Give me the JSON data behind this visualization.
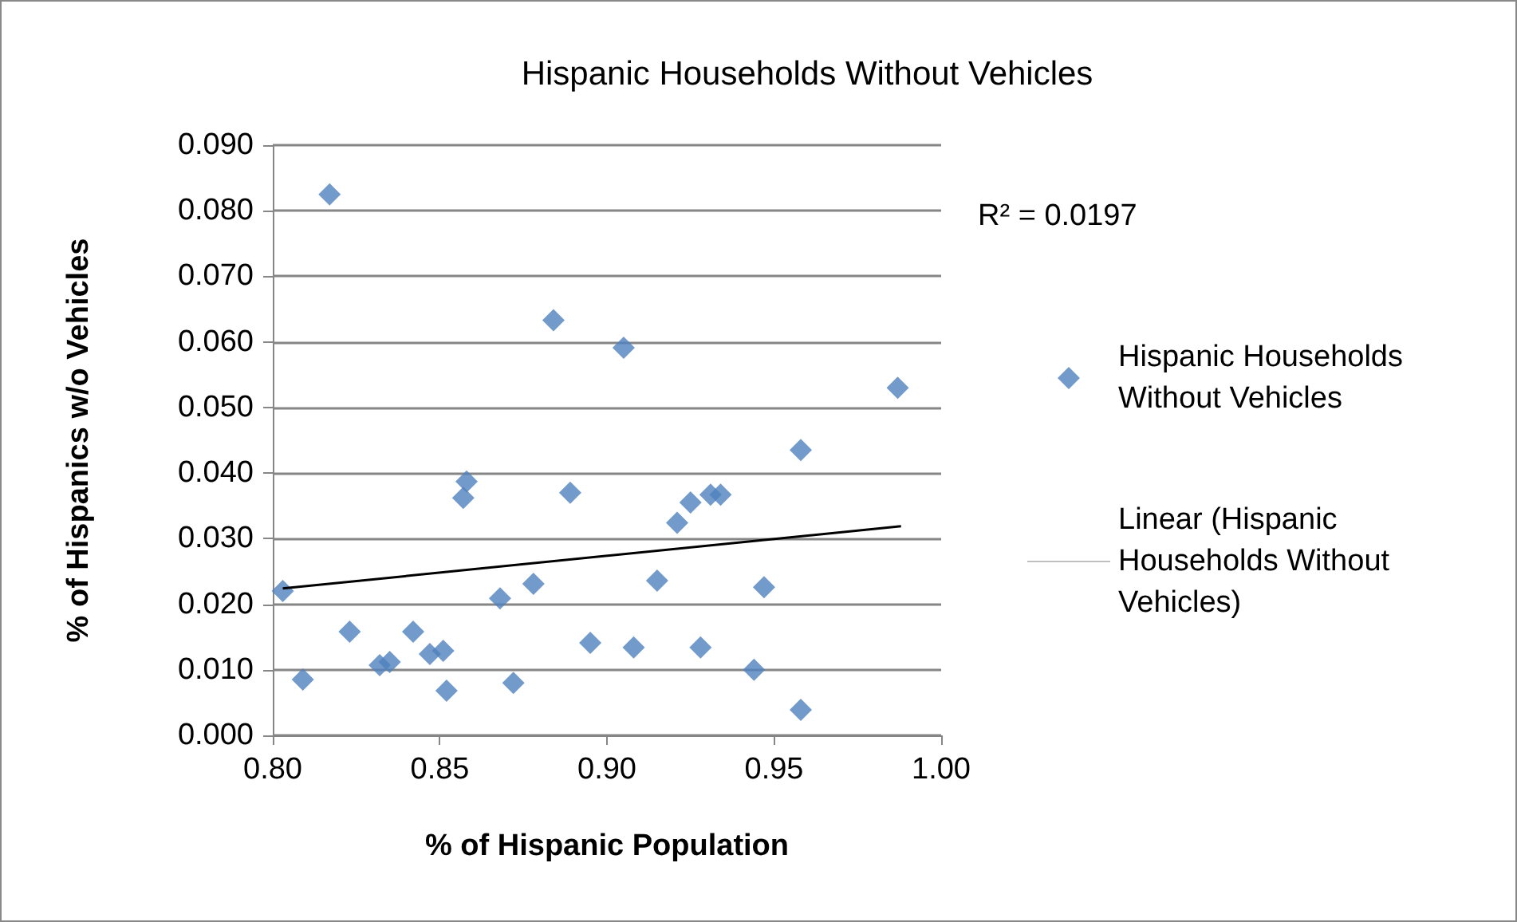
{
  "chart_data": {
    "type": "scatter",
    "title": "Hispanic Households Without Vehicles",
    "xlabel": "% of Hispanic Population",
    "ylabel": "% of Hispanics w/o Vehicles",
    "xlim": [
      0.8,
      1.0
    ],
    "xticks": [
      {
        "value": 0.8,
        "label": "0.80"
      },
      {
        "value": 0.85,
        "label": "0.85"
      },
      {
        "value": 0.9,
        "label": "0.90"
      },
      {
        "value": 0.95,
        "label": "0.95"
      },
      {
        "value": 1.0,
        "label": "1.00"
      }
    ],
    "ylim": [
      0,
      0.09
    ],
    "yticks": [
      {
        "value": 0,
        "label": "0.000"
      },
      {
        "value": 0.01,
        "label": "0.010"
      },
      {
        "value": 0.02,
        "label": "0.020"
      },
      {
        "value": 0.03,
        "label": "0.030"
      },
      {
        "value": 0.04,
        "label": "0.040"
      },
      {
        "value": 0.05,
        "label": "0.050"
      },
      {
        "value": 0.06,
        "label": "0.060"
      },
      {
        "value": 0.07,
        "label": "0.070"
      },
      {
        "value": 0.08,
        "label": "0.080"
      },
      {
        "value": 0.09,
        "label": "0.090"
      }
    ],
    "grid": "y",
    "legend": "right",
    "annotations": [
      "R² = 0.0197"
    ],
    "series": [
      {
        "name": "Hispanic Households Without Vehicles",
        "marker": "diamond",
        "color": "#4f81bd",
        "x": [
          0.803,
          0.809,
          0.817,
          0.823,
          0.832,
          0.835,
          0.842,
          0.847,
          0.851,
          0.852,
          0.857,
          0.858,
          0.868,
          0.872,
          0.878,
          0.884,
          0.889,
          0.895,
          0.905,
          0.908,
          0.915,
          0.921,
          0.925,
          0.928,
          0.931,
          0.934,
          0.944,
          0.947,
          0.958,
          0.958,
          0.987
        ],
        "values": [
          0.022,
          0.0085,
          0.0825,
          0.0158,
          0.0107,
          0.0112,
          0.0158,
          0.0124,
          0.0129,
          0.0068,
          0.0362,
          0.0387,
          0.0209,
          0.008,
          0.0231,
          0.0633,
          0.037,
          0.0141,
          0.0591,
          0.0134,
          0.0236,
          0.0324,
          0.0355,
          0.0134,
          0.0367,
          0.0367,
          0.01,
          0.0226,
          0.0435,
          0.0039,
          0.053
        ]
      },
      {
        "name": "Linear (Hispanic Households Without Vehicles)",
        "type": "line",
        "marker": "none",
        "line_style": "solid",
        "color": "#000000",
        "x": [
          0.803,
          0.988
        ],
        "values": [
          0.0224,
          0.0319
        ]
      }
    ]
  }
}
